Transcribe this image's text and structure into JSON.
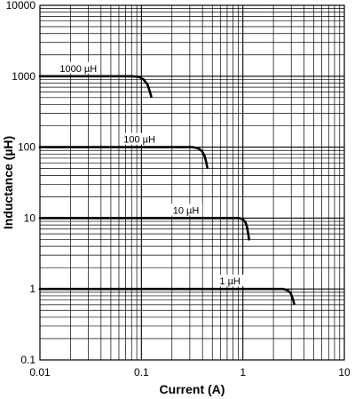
{
  "chart_data": {
    "type": "line",
    "title": "",
    "xlabel": "Current (A)",
    "ylabel": "Inductance (µH)",
    "xscale": "log",
    "yscale": "log",
    "xlim": [
      0.01,
      10
    ],
    "ylim": [
      0.1,
      10000
    ],
    "grid": true,
    "x_ticks": [
      "0.01",
      "0.1",
      "1",
      "10"
    ],
    "y_ticks": [
      "0.1",
      "1",
      "10",
      "100",
      "1000",
      "10000"
    ],
    "series": [
      {
        "name": "1000 µH",
        "x": [
          0.01,
          0.08,
          0.095,
          0.105,
          0.115,
          0.12,
          0.125
        ],
        "y": [
          1000,
          1000,
          980,
          900,
          760,
          630,
          520
        ]
      },
      {
        "name": "100 µH",
        "x": [
          0.01,
          0.32,
          0.36,
          0.395,
          0.42,
          0.435,
          0.445
        ],
        "y": [
          100,
          100,
          97,
          88,
          75,
          62,
          52
        ]
      },
      {
        "name": "10 µH",
        "x": [
          0.01,
          0.92,
          1.0,
          1.06,
          1.1,
          1.13,
          1.15
        ],
        "y": [
          10,
          10,
          9.6,
          8.7,
          7.4,
          6.0,
          5.0
        ]
      },
      {
        "name": "1 µH",
        "x": [
          0.01,
          2.5,
          2.75,
          2.95,
          3.05,
          3.15,
          3.2
        ],
        "y": [
          1,
          1,
          0.96,
          0.88,
          0.78,
          0.68,
          0.62
        ]
      }
    ]
  }
}
